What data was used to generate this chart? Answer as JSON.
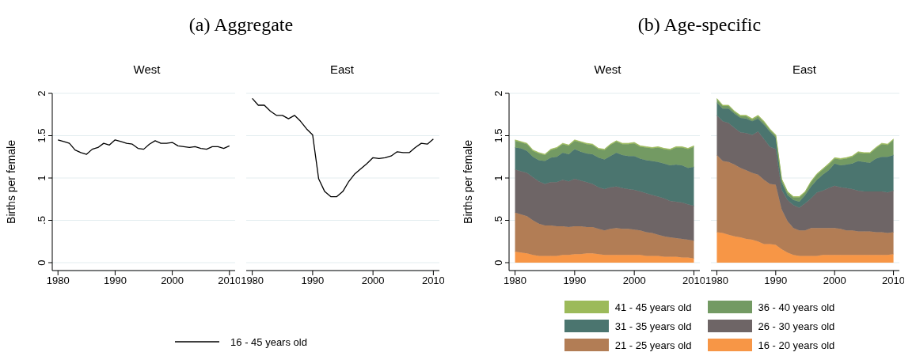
{
  "chart_data": [
    {
      "type": "line",
      "title": "(a) Aggregate",
      "subtitle": "West",
      "ylabel": "Births per female",
      "x": [
        1980,
        1981,
        1982,
        1983,
        1984,
        1985,
        1986,
        1987,
        1988,
        1989,
        1990,
        1991,
        1992,
        1993,
        1994,
        1995,
        1996,
        1997,
        1998,
        1999,
        2000,
        2001,
        2002,
        2003,
        2004,
        2005,
        2006,
        2007,
        2008,
        2009,
        2010
      ],
      "xlim": [
        1979,
        2011
      ],
      "xticks": [
        1980,
        1990,
        2000,
        2010
      ],
      "ylim": [
        0,
        2
      ],
      "yticks": [
        0,
        {
          "value": 0.5,
          "label": ".5"
        },
        1,
        1.5,
        2
      ],
      "grid": "y",
      "legend": "bottom",
      "series": [
        {
          "name": "16 - 45 years old",
          "color": "#000000",
          "values": [
            1.45,
            1.43,
            1.41,
            1.33,
            1.3,
            1.28,
            1.34,
            1.36,
            1.41,
            1.39,
            1.45,
            1.43,
            1.41,
            1.4,
            1.35,
            1.34,
            1.4,
            1.44,
            1.41,
            1.41,
            1.42,
            1.38,
            1.37,
            1.36,
            1.37,
            1.35,
            1.34,
            1.37,
            1.37,
            1.35,
            1.38
          ]
        }
      ]
    },
    {
      "type": "line",
      "subtitle": "East",
      "x": [
        1980,
        1981,
        1982,
        1983,
        1984,
        1985,
        1986,
        1987,
        1988,
        1989,
        1990,
        1991,
        1992,
        1993,
        1994,
        1995,
        1996,
        1997,
        1998,
        1999,
        2000,
        2001,
        2002,
        2003,
        2004,
        2005,
        2006,
        2007,
        2008,
        2009,
        2010
      ],
      "xlim": [
        1979,
        2011
      ],
      "xticks": [
        1980,
        1990,
        2000,
        2010
      ],
      "ylim": [
        0,
        2
      ],
      "yticks": [
        0,
        0.5,
        1,
        1.5,
        2
      ],
      "grid": "y",
      "tick_labels": "x",
      "series": [
        {
          "color": "#000000",
          "values": [
            1.94,
            1.86,
            1.86,
            1.79,
            1.74,
            1.74,
            1.7,
            1.74,
            1.67,
            1.58,
            1.51,
            0.99,
            0.84,
            0.78,
            0.78,
            0.84,
            0.96,
            1.05,
            1.11,
            1.17,
            1.24,
            1.23,
            1.24,
            1.26,
            1.31,
            1.3,
            1.3,
            1.36,
            1.41,
            1.4,
            1.46
          ]
        }
      ]
    },
    {
      "type": "area",
      "title": "(b) Age-specific",
      "subtitle": "West",
      "ylabel": "Births per female",
      "stacked": true,
      "x": [
        1980,
        1981,
        1982,
        1983,
        1984,
        1985,
        1986,
        1987,
        1988,
        1989,
        1990,
        1991,
        1992,
        1993,
        1994,
        1995,
        1996,
        1997,
        1998,
        1999,
        2000,
        2001,
        2002,
        2003,
        2004,
        2005,
        2006,
        2007,
        2008,
        2009,
        2010
      ],
      "xlim": [
        1979,
        2011
      ],
      "xticks": [
        1980,
        1990,
        2000,
        2010
      ],
      "ylim": [
        0,
        2
      ],
      "yticks": [
        0,
        {
          "value": 0.5,
          "label": ".5"
        },
        1,
        1.5,
        2
      ],
      "grid": "y",
      "legend": "bottom",
      "series": [
        {
          "name": "16 - 20 years old",
          "color": "#f79646",
          "values": [
            0.13,
            0.12,
            0.11,
            0.09,
            0.08,
            0.08,
            0.08,
            0.08,
            0.09,
            0.09,
            0.1,
            0.1,
            0.11,
            0.11,
            0.1,
            0.09,
            0.09,
            0.09,
            0.09,
            0.09,
            0.09,
            0.09,
            0.08,
            0.08,
            0.08,
            0.07,
            0.07,
            0.07,
            0.06,
            0.06,
            0.05
          ]
        },
        {
          "name": "21 - 25 years old",
          "color": "#b27d55",
          "values": [
            0.46,
            0.45,
            0.44,
            0.41,
            0.38,
            0.36,
            0.36,
            0.35,
            0.34,
            0.33,
            0.33,
            0.33,
            0.31,
            0.31,
            0.3,
            0.29,
            0.31,
            0.32,
            0.31,
            0.31,
            0.3,
            0.29,
            0.28,
            0.27,
            0.25,
            0.24,
            0.23,
            0.22,
            0.22,
            0.21,
            0.21
          ]
        },
        {
          "name": "26 - 30 years old",
          "color": "#6e6566",
          "values": [
            0.51,
            0.51,
            0.51,
            0.51,
            0.5,
            0.49,
            0.51,
            0.52,
            0.55,
            0.54,
            0.56,
            0.54,
            0.53,
            0.51,
            0.49,
            0.49,
            0.49,
            0.49,
            0.48,
            0.47,
            0.47,
            0.46,
            0.46,
            0.45,
            0.45,
            0.45,
            0.43,
            0.43,
            0.43,
            0.42,
            0.41
          ]
        },
        {
          "name": "31 - 35 years old",
          "color": "#4b756f",
          "values": [
            0.26,
            0.27,
            0.26,
            0.24,
            0.25,
            0.27,
            0.29,
            0.3,
            0.32,
            0.32,
            0.35,
            0.34,
            0.34,
            0.35,
            0.35,
            0.35,
            0.37,
            0.4,
            0.39,
            0.39,
            0.4,
            0.39,
            0.39,
            0.4,
            0.41,
            0.41,
            0.42,
            0.44,
            0.44,
            0.43,
            0.46
          ]
        },
        {
          "name": "36 - 40 years old",
          "color": "#739a63",
          "values": [
            0.08,
            0.07,
            0.08,
            0.07,
            0.08,
            0.07,
            0.09,
            0.1,
            0.1,
            0.1,
            0.1,
            0.11,
            0.11,
            0.11,
            0.1,
            0.11,
            0.13,
            0.13,
            0.13,
            0.14,
            0.15,
            0.14,
            0.15,
            0.15,
            0.17,
            0.17,
            0.18,
            0.2,
            0.21,
            0.22,
            0.24
          ]
        },
        {
          "name": "41 - 45 years old",
          "color": "#9cba5a",
          "values": [
            0.01,
            0.01,
            0.01,
            0.01,
            0.01,
            0.01,
            0.01,
            0.01,
            0.01,
            0.01,
            0.01,
            0.01,
            0.01,
            0.01,
            0.01,
            0.01,
            0.01,
            0.01,
            0.01,
            0.01,
            0.01,
            0.01,
            0.01,
            0.01,
            0.01,
            0.01,
            0.01,
            0.01,
            0.01,
            0.01,
            0.01
          ]
        }
      ]
    },
    {
      "type": "area",
      "subtitle": "East",
      "stacked": true,
      "x": [
        1980,
        1981,
        1982,
        1983,
        1984,
        1985,
        1986,
        1987,
        1988,
        1989,
        1990,
        1991,
        1992,
        1993,
        1994,
        1995,
        1996,
        1997,
        1998,
        1999,
        2000,
        2001,
        2002,
        2003,
        2004,
        2005,
        2006,
        2007,
        2008,
        2009,
        2010
      ],
      "xlim": [
        1979,
        2011
      ],
      "xticks": [
        1980,
        1990,
        2000,
        2010
      ],
      "ylim": [
        0,
        2
      ],
      "yticks": [
        0,
        0.5,
        1,
        1.5,
        2
      ],
      "grid": "y",
      "tick_labels": "x",
      "series": [
        {
          "color": "#f79646",
          "values": [
            0.36,
            0.35,
            0.33,
            0.31,
            0.3,
            0.28,
            0.27,
            0.25,
            0.22,
            0.22,
            0.21,
            0.16,
            0.12,
            0.09,
            0.08,
            0.08,
            0.08,
            0.08,
            0.09,
            0.09,
            0.09,
            0.09,
            0.09,
            0.09,
            0.09,
            0.09,
            0.09,
            0.09,
            0.09,
            0.09,
            0.1
          ]
        },
        {
          "color": "#b27d55",
          "values": [
            0.91,
            0.85,
            0.86,
            0.85,
            0.82,
            0.81,
            0.79,
            0.79,
            0.76,
            0.71,
            0.71,
            0.47,
            0.37,
            0.32,
            0.3,
            0.3,
            0.33,
            0.33,
            0.32,
            0.32,
            0.32,
            0.31,
            0.29,
            0.29,
            0.28,
            0.28,
            0.28,
            0.27,
            0.27,
            0.26,
            0.26
          ]
        },
        {
          "color": "#6e6566",
          "values": [
            0.47,
            0.47,
            0.46,
            0.43,
            0.42,
            0.44,
            0.45,
            0.51,
            0.48,
            0.44,
            0.42,
            0.23,
            0.25,
            0.27,
            0.27,
            0.32,
            0.35,
            0.42,
            0.44,
            0.47,
            0.5,
            0.49,
            0.5,
            0.49,
            0.48,
            0.47,
            0.47,
            0.48,
            0.48,
            0.48,
            0.49
          ]
        },
        {
          "color": "#4b756f",
          "values": [
            0.15,
            0.15,
            0.17,
            0.17,
            0.17,
            0.17,
            0.16,
            0.15,
            0.17,
            0.18,
            0.14,
            0.09,
            0.06,
            0.06,
            0.07,
            0.1,
            0.14,
            0.15,
            0.19,
            0.21,
            0.26,
            0.26,
            0.28,
            0.3,
            0.35,
            0.35,
            0.34,
            0.39,
            0.41,
            0.42,
            0.42
          ]
        },
        {
          "color": "#739a63",
          "values": [
            0.04,
            0.03,
            0.03,
            0.02,
            0.02,
            0.03,
            0.02,
            0.03,
            0.03,
            0.02,
            0.02,
            0.03,
            0.03,
            0.03,
            0.05,
            0.03,
            0.05,
            0.06,
            0.06,
            0.07,
            0.06,
            0.07,
            0.07,
            0.08,
            0.1,
            0.1,
            0.11,
            0.12,
            0.15,
            0.14,
            0.18
          ]
        },
        {
          "color": "#9cba5a",
          "values": [
            0.01,
            0.01,
            0.01,
            0.01,
            0.01,
            0.01,
            0.01,
            0.01,
            0.01,
            0.01,
            0.01,
            0.01,
            0.01,
            0.01,
            0.01,
            0.01,
            0.01,
            0.01,
            0.01,
            0.01,
            0.01,
            0.01,
            0.01,
            0.01,
            0.01,
            0.01,
            0.01,
            0.01,
            0.01,
            0.01,
            0.01
          ]
        }
      ]
    }
  ]
}
